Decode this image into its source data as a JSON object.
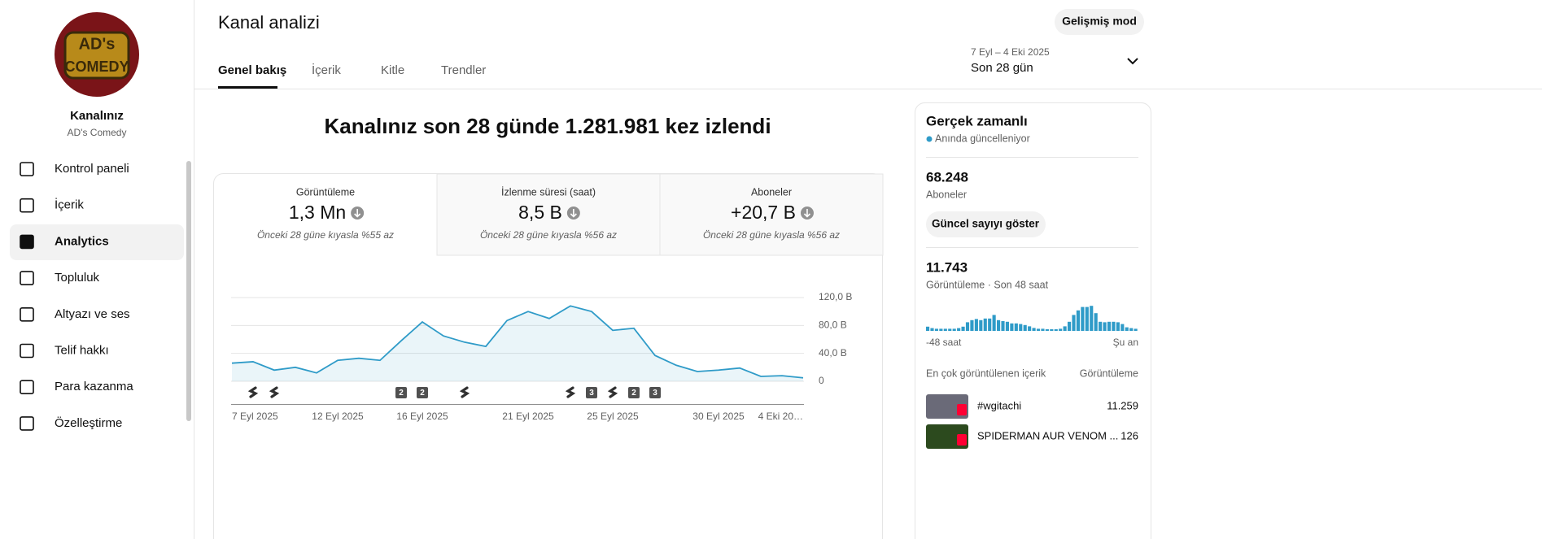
{
  "sidebar": {
    "avatar_text": [
      "AD's",
      "COMEDY"
    ],
    "channel_label": "Kanalınız",
    "channel_name": "AD's Comedy",
    "nav": [
      "Kontrol paneli",
      "İçerik",
      "Analytics",
      "Topluluk",
      "Altyazı ve ses",
      "Telif hakkı",
      "Para kazanma",
      "Özelleştirme"
    ]
  },
  "header": {
    "title": "Kanal analizi",
    "advanced_button": "Gelişmiş mod",
    "tabs": [
      "Genel bakış",
      "İçerik",
      "Kitle",
      "Trendler"
    ],
    "date_range": "7 Eyl – 4 Eki 2025",
    "period": "Son 28 gün"
  },
  "overview": {
    "headline": "Kanalınız son 28 günde 1.281.981 kez izlendi",
    "metrics": [
      {
        "label": "Görüntüleme",
        "value": "1,3 Mn",
        "comparison": "Önceki 28 güne kıyasla %55 az"
      },
      {
        "label": "İzlenme süresi (saat)",
        "value": "8,5 B",
        "comparison": "Önceki 28 güne kıyasla %56 az"
      },
      {
        "label": "Aboneler",
        "value": "+20,7 B",
        "comparison": "Önceki 28 güne kıyasla %56 az"
      }
    ]
  },
  "chart_data": {
    "type": "line",
    "color": "#2f9bc8",
    "categories": [
      "7 Eyl 2025",
      null,
      null,
      null,
      null,
      "12 Eyl 2025",
      null,
      null,
      null,
      "16 Eyl 2025",
      null,
      null,
      null,
      null,
      "21 Eyl 2025",
      null,
      null,
      null,
      "25 Eyl 2025",
      null,
      null,
      null,
      null,
      "30 Eyl 2025",
      null,
      null,
      null,
      "4 Eki 20…"
    ],
    "values": [
      26000,
      28000,
      16000,
      20000,
      12000,
      30000,
      33000,
      30000,
      58000,
      85000,
      65000,
      56000,
      50000,
      87000,
      100000,
      90000,
      108000,
      100000,
      73000,
      76000,
      37000,
      23000,
      14000,
      16000,
      19000,
      7000,
      8000,
      5000
    ],
    "badges": [
      null,
      null,
      null,
      null,
      null,
      null,
      null,
      null,
      "2",
      "2",
      null,
      null,
      null,
      null,
      null,
      null,
      null,
      "3",
      null,
      "2",
      "3",
      null,
      null,
      null,
      null,
      null,
      null,
      null
    ],
    "ylim": [
      0,
      120000
    ],
    "yticks": [
      0,
      {
        "value": 40000,
        "label": "40,0 B"
      },
      {
        "value": 80000,
        "label": "80,0 B"
      },
      {
        "value": 120000,
        "label": "120,0 B"
      }
    ],
    "grid": true
  },
  "realtime": {
    "title": "Gerçek zamanlı",
    "status": "Anında güncelleniyor",
    "subscribers": "68.248",
    "subscribers_label": "Aboneler",
    "show_button": "Güncel sayıyı göster",
    "views": "11.743",
    "views_label": "Görüntüleme · Son 48 saat",
    "chart_data": {
      "type": "bar",
      "color": "#2f9bc8",
      "values": [
        130,
        85,
        65,
        65,
        65,
        65,
        65,
        85,
        130,
        265,
        330,
        365,
        330,
        380,
        380,
        490,
        330,
        300,
        280,
        230,
        230,
        210,
        180,
        140,
        90,
        65,
        65,
        50,
        50,
        50,
        65,
        140,
        280,
        490,
        630,
        735,
        735,
        770,
        545,
        280,
        265,
        280,
        280,
        265,
        210,
        110,
        85,
        65
      ],
      "start_label": "-48 saat",
      "end_label": "Şu an"
    },
    "top_heading": "En çok görüntülenen içerik",
    "top_column": "Görüntüleme",
    "top_content": [
      {
        "title": "#wgitachi",
        "views": "11.259"
      },
      {
        "title": "SPIDERMAN AUR VENOM ...",
        "views": "126"
      }
    ]
  }
}
